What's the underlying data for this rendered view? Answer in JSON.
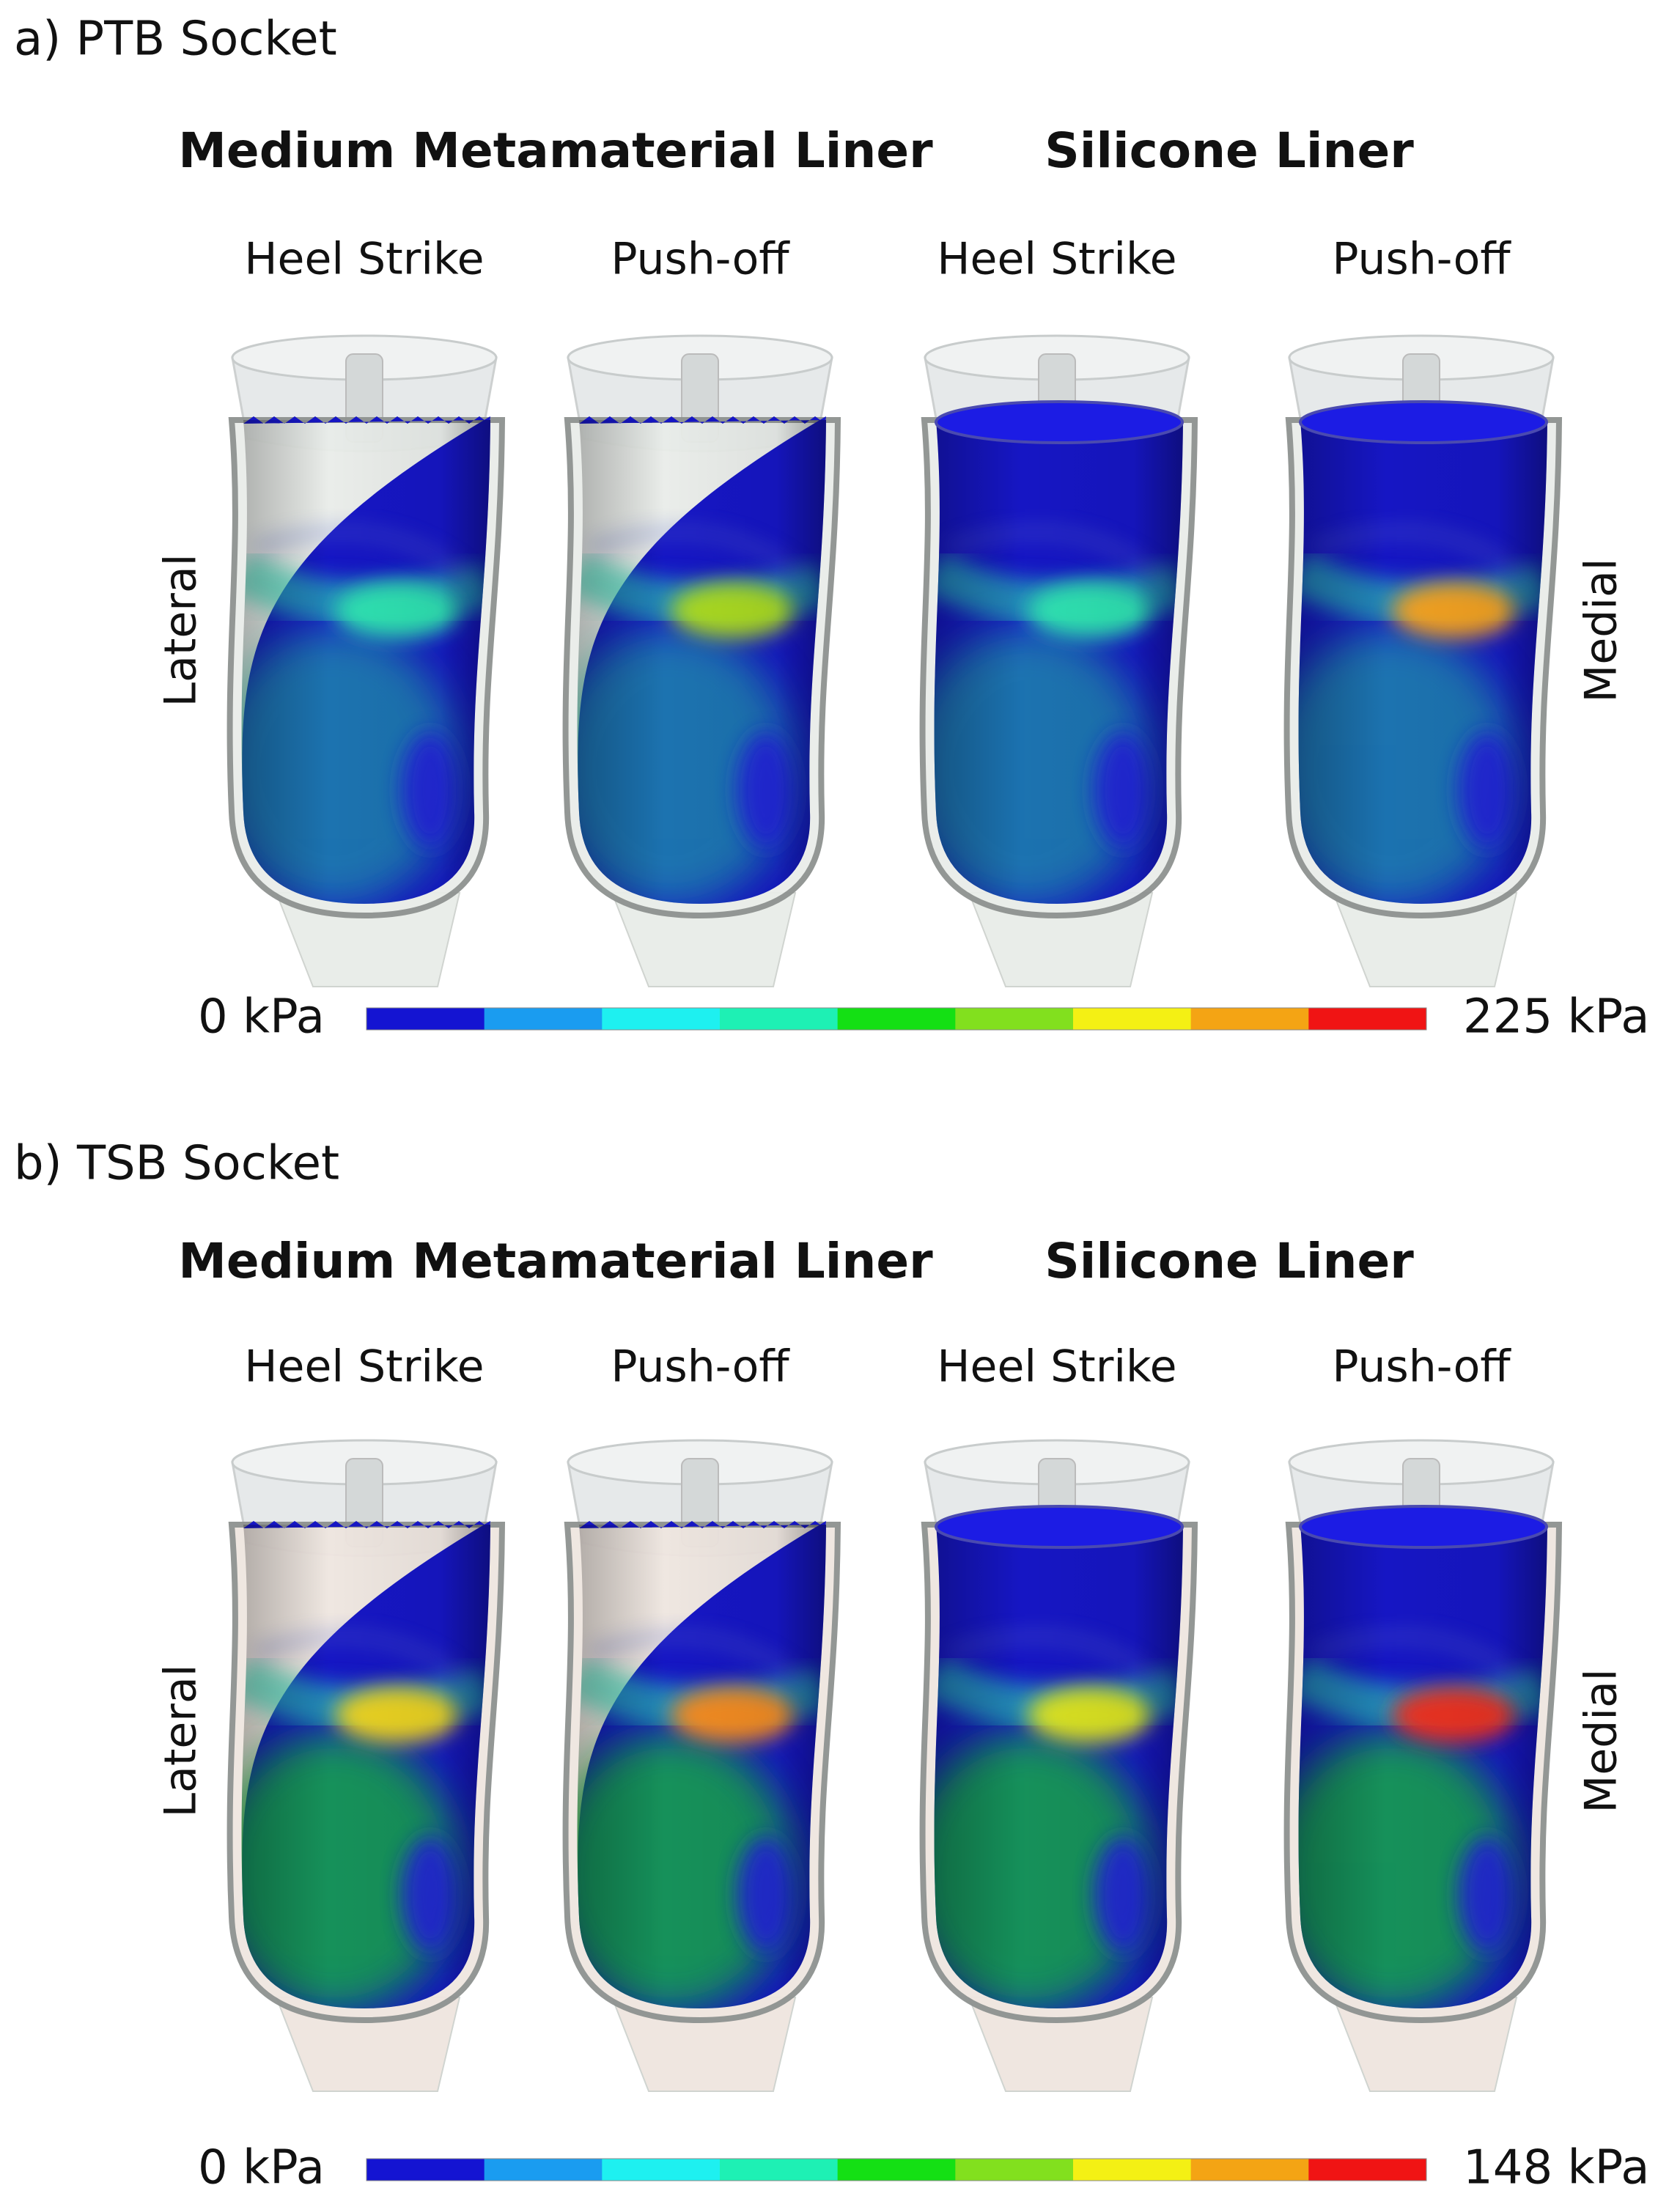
{
  "panels": [
    {
      "label": "a) PTB Socket",
      "groups": [
        "Medium Metamaterial Liner",
        "Silicone Liner"
      ],
      "columns": [
        "Heel Strike",
        "Push-off",
        "Heel Strike",
        "Push-off"
      ],
      "side_labels": [
        "Lateral",
        "Medial"
      ],
      "colorbar": {
        "min_label": "0 kPa",
        "max_label": "225 kPa"
      }
    },
    {
      "label": "b) TSB Socket",
      "groups": [
        "Medium Metamaterial Liner",
        "Silicone Liner"
      ],
      "columns": [
        "Heel Strike",
        "Push-off",
        "Heel Strike",
        "Push-off"
      ],
      "side_labels": [
        "Lateral",
        "Medial"
      ],
      "colorbar": {
        "min_label": "0 kPa",
        "max_label": "148 kPa"
      }
    }
  ],
  "colorbar_colors": [
    "#1414d2",
    "#1a9cf0",
    "#1ef0f0",
    "#1ef0b4",
    "#14e014",
    "#82e01e",
    "#f4f014",
    "#f4a414",
    "#f01414"
  ]
}
